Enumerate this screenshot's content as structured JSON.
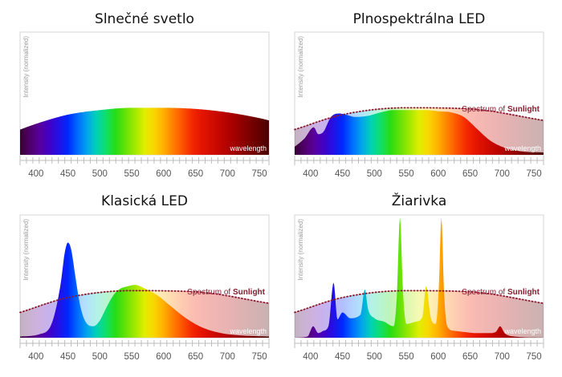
{
  "chart_data": [
    {
      "type": "area",
      "title": "Slnečné svetlo",
      "ylabel": "Intensity (normalized)",
      "xlabel": "wavelength",
      "xlim": [
        375,
        765
      ],
      "ylim": [
        0,
        1
      ],
      "x_ticks": [
        400,
        450,
        500,
        550,
        600,
        650,
        700,
        750
      ],
      "series": [
        {
          "x": [
            375,
            400,
            450,
            500,
            550,
            600,
            650,
            700,
            750,
            765
          ],
          "values": [
            0.22,
            0.27,
            0.35,
            0.39,
            0.41,
            0.41,
            0.4,
            0.37,
            0.32,
            0.3
          ]
        }
      ],
      "reference": null
    },
    {
      "type": "area",
      "title": "Plnospektrálna LED",
      "ylabel": "Intensity (normalized)",
      "xlabel": "wavelength",
      "xlim": [
        375,
        765
      ],
      "ylim": [
        0,
        1
      ],
      "x_ticks": [
        400,
        450,
        500,
        550,
        600,
        650,
        700,
        750
      ],
      "series": [
        {
          "x": [
            375,
            390,
            405,
            412,
            420,
            432,
            445,
            455,
            470,
            490,
            510,
            530,
            555,
            580,
            600,
            620,
            640,
            660,
            680,
            700,
            730,
            765
          ],
          "values": [
            0.07,
            0.14,
            0.24,
            0.18,
            0.2,
            0.33,
            0.36,
            0.35,
            0.33,
            0.34,
            0.37,
            0.39,
            0.39,
            0.39,
            0.38,
            0.37,
            0.33,
            0.23,
            0.13,
            0.07,
            0.03,
            0.02
          ]
        }
      ],
      "reference": {
        "name_prefix": "Spectrum of ",
        "name_bold": "Sunlight",
        "x": [
          375,
          450,
          550,
          650,
          765
        ],
        "values": [
          0.22,
          0.35,
          0.41,
          0.4,
          0.3
        ]
      }
    },
    {
      "type": "area",
      "title": "Klasická LED",
      "ylabel": "Intensity (normalized)",
      "xlabel": "wavelength",
      "xlim": [
        375,
        765
      ],
      "ylim": [
        0,
        1
      ],
      "x_ticks": [
        400,
        450,
        500,
        550,
        600,
        650,
        700,
        750
      ],
      "series": [
        {
          "x": [
            375,
            405,
            425,
            438,
            445,
            450,
            455,
            462,
            470,
            480,
            490,
            500,
            510,
            520,
            530,
            545,
            555,
            570,
            590,
            610,
            635,
            660,
            690,
            720,
            765
          ],
          "values": [
            0.01,
            0.03,
            0.13,
            0.45,
            0.74,
            0.83,
            0.77,
            0.52,
            0.26,
            0.12,
            0.1,
            0.15,
            0.26,
            0.36,
            0.42,
            0.45,
            0.46,
            0.43,
            0.37,
            0.28,
            0.17,
            0.09,
            0.04,
            0.02,
            0.01
          ]
        }
      ],
      "reference": {
        "name_prefix": "Spectrum of ",
        "name_bold": "Sunlight",
        "x": [
          375,
          450,
          550,
          650,
          765
        ],
        "values": [
          0.22,
          0.35,
          0.41,
          0.4,
          0.3
        ]
      }
    },
    {
      "type": "area",
      "title": "Žiarivka",
      "ylabel": "Intensity (normalized)",
      "xlabel": "wavelength",
      "xlim": [
        375,
        765
      ],
      "ylim": [
        0,
        1
      ],
      "x_ticks": [
        400,
        450,
        500,
        550,
        600,
        650,
        700,
        750
      ],
      "series": [
        {
          "x": [
            375,
            395,
            404,
            412,
            420,
            428,
            436,
            442,
            450,
            462,
            478,
            485,
            490,
            500,
            515,
            530,
            535,
            540,
            545,
            550,
            565,
            575,
            581,
            588,
            596,
            601,
            605,
            609,
            614,
            625,
            640,
            660,
            680,
            690,
            697,
            704,
            720,
            765
          ],
          "values": [
            0.0,
            0.01,
            0.1,
            0.04,
            0.06,
            0.1,
            0.48,
            0.16,
            0.22,
            0.17,
            0.2,
            0.42,
            0.25,
            0.17,
            0.14,
            0.1,
            0.35,
            1.05,
            0.38,
            0.12,
            0.14,
            0.18,
            0.45,
            0.18,
            0.12,
            0.45,
            1.05,
            0.4,
            0.1,
            0.06,
            0.05,
            0.04,
            0.04,
            0.05,
            0.1,
            0.04,
            0.01,
            0.0
          ]
        }
      ],
      "reference": {
        "name_prefix": "Spectrum of ",
        "name_bold": "Sunlight",
        "x": [
          375,
          450,
          550,
          650,
          765
        ],
        "values": [
          0.22,
          0.35,
          0.41,
          0.4,
          0.3
        ]
      }
    }
  ]
}
